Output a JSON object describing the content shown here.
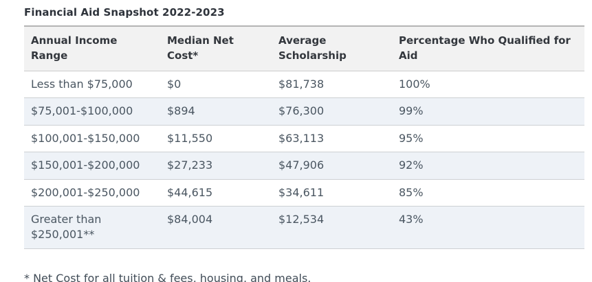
{
  "page": {
    "title": "Financial Aid Snapshot 2022-2023",
    "footnote": "* Net Cost for all tuition & fees, housing, and meals."
  },
  "table": {
    "columns": [
      "Annual Income Range",
      "Median Net Cost*",
      "Average Scholarship",
      "Percentage Who Qualified for Aid"
    ],
    "rows": [
      [
        "Less than $75,000",
        "$0",
        "$81,738",
        "100%"
      ],
      [
        "$75,001-$100,000",
        "$894",
        "$76,300",
        "99%"
      ],
      [
        "$100,001-$150,000",
        "$11,550",
        "$63,113",
        "95%"
      ],
      [
        "$150,001-$200,000",
        "$27,233",
        "$47,906",
        "92%"
      ],
      [
        "$200,001-$250,000",
        "$44,615",
        "$34,611",
        "85%"
      ],
      [
        "Greater than $250,001**",
        "$84,004",
        "$12,534",
        "43%"
      ]
    ]
  },
  "chart_data": {
    "type": "table",
    "title": "Financial Aid Snapshot 2022-2023",
    "columns": [
      "Annual Income Range",
      "Median Net Cost*",
      "Average Scholarship",
      "Percentage Who Qualified for Aid"
    ],
    "rows": [
      {
        "income_range": "Less than $75,000",
        "median_net_cost": "$0",
        "average_scholarship": "$81,738",
        "pct_qualified_for_aid": "100%"
      },
      {
        "income_range": "$75,001-$100,000",
        "median_net_cost": "$894",
        "average_scholarship": "$76,300",
        "pct_qualified_for_aid": "99%"
      },
      {
        "income_range": "$100,001-$150,000",
        "median_net_cost": "$11,550",
        "average_scholarship": "$63,113",
        "pct_qualified_for_aid": "95%"
      },
      {
        "income_range": "$150,001-$200,000",
        "median_net_cost": "$27,233",
        "average_scholarship": "$47,906",
        "pct_qualified_for_aid": "92%"
      },
      {
        "income_range": "$200,001-$250,000",
        "median_net_cost": "$44,615",
        "average_scholarship": "$34,611",
        "pct_qualified_for_aid": "85%"
      },
      {
        "income_range": "Greater than $250,001**",
        "median_net_cost": "$84,004",
        "average_scholarship": "$12,534",
        "pct_qualified_for_aid": "43%"
      }
    ],
    "footnote": "* Net Cost for all tuition & fees, housing, and meals.",
    "layout_hints": {
      "striped_rows": "even rows shaded",
      "header_background": "#f2f2f2",
      "stripe_background": "#eef2f7",
      "border_color": "#cdd0d3",
      "title_color": "#2e333b",
      "body_text_color": "#4a5661"
    }
  }
}
